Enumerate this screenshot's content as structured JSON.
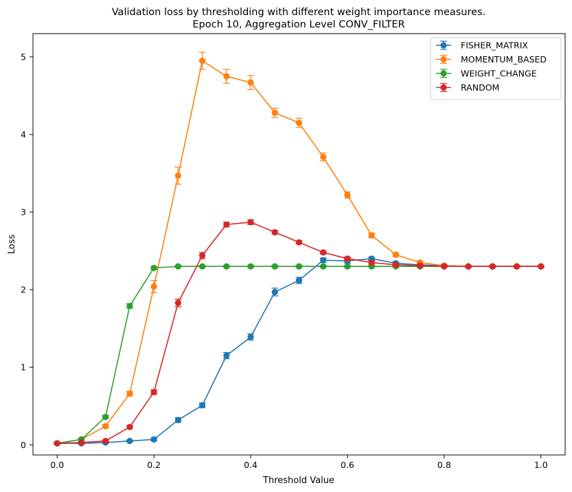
{
  "chart_data": {
    "type": "line",
    "title": "Validation loss by thresholding with different weight importance measures.",
    "subtitle": "Epoch 10, Aggregation Level CONV_FILTER",
    "xlabel": "Threshold Value",
    "ylabel": "Loss",
    "xlim": [
      -0.05,
      1.05
    ],
    "ylim": [
      -0.13,
      5.3
    ],
    "xticks": [
      0.0,
      0.2,
      0.4,
      0.6,
      0.8,
      1.0
    ],
    "xtick_labels": [
      "0.0",
      "0.2",
      "0.4",
      "0.6",
      "0.8",
      "1.0"
    ],
    "yticks": [
      0,
      1,
      2,
      3,
      4,
      5
    ],
    "ytick_labels": [
      "0",
      "1",
      "2",
      "3",
      "4",
      "5"
    ],
    "grid": false,
    "legend_position": "top-right",
    "x": [
      0.0,
      0.05,
      0.1,
      0.15,
      0.2,
      0.25,
      0.3,
      0.35,
      0.4,
      0.45,
      0.5,
      0.55,
      0.6,
      0.65,
      0.7,
      0.75,
      0.8,
      0.85,
      0.9,
      0.95,
      1.0
    ],
    "series": [
      {
        "name": "FISHER_MATRIX",
        "color": "#1f77b4",
        "values": [
          0.02,
          0.02,
          0.03,
          0.05,
          0.07,
          0.32,
          0.51,
          1.15,
          1.39,
          1.97,
          2.12,
          2.38,
          2.37,
          2.4,
          2.34,
          2.32,
          2.31,
          2.3,
          2.3,
          2.3,
          2.3
        ],
        "errors": [
          0.01,
          0.01,
          0.01,
          0.01,
          0.02,
          0.03,
          0.03,
          0.04,
          0.04,
          0.05,
          0.04,
          0.03,
          0.03,
          0.02,
          0.02,
          0.01,
          0.01,
          0.01,
          0.01,
          0.01,
          0.01
        ]
      },
      {
        "name": "MOMENTUM_BASED",
        "color": "#ff7f0e",
        "values": [
          0.02,
          0.07,
          0.24,
          0.66,
          2.04,
          3.47,
          4.95,
          4.75,
          4.67,
          4.28,
          4.15,
          3.71,
          3.22,
          2.7,
          2.45,
          2.35,
          2.31,
          2.3,
          2.3,
          2.3,
          2.3
        ],
        "errors": [
          0.01,
          0.01,
          0.02,
          0.03,
          0.08,
          0.11,
          0.11,
          0.09,
          0.09,
          0.06,
          0.06,
          0.05,
          0.04,
          0.03,
          0.02,
          0.02,
          0.01,
          0.01,
          0.01,
          0.01,
          0.01
        ]
      },
      {
        "name": "WEIGHT_CHANGE",
        "color": "#2ca02c",
        "values": [
          0.02,
          0.07,
          0.36,
          1.79,
          2.28,
          2.3,
          2.3,
          2.3,
          2.3,
          2.3,
          2.3,
          2.3,
          2.3,
          2.3,
          2.3,
          2.3,
          2.3,
          2.3,
          2.3,
          2.3,
          2.3
        ],
        "errors": [
          0.01,
          0.01,
          0.02,
          0.03,
          0.02,
          0.01,
          0.01,
          0.01,
          0.01,
          0.01,
          0.01,
          0.01,
          0.01,
          0.01,
          0.01,
          0.01,
          0.01,
          0.01,
          0.01,
          0.01,
          0.01
        ]
      },
      {
        "name": "RANDOM",
        "color": "#d62728",
        "values": [
          0.02,
          0.03,
          0.05,
          0.23,
          0.68,
          1.83,
          2.44,
          2.84,
          2.87,
          2.74,
          2.61,
          2.48,
          2.4,
          2.35,
          2.32,
          2.31,
          2.3,
          2.3,
          2.3,
          2.3,
          2.3
        ],
        "errors": [
          0.01,
          0.01,
          0.01,
          0.02,
          0.03,
          0.05,
          0.04,
          0.03,
          0.03,
          0.02,
          0.02,
          0.02,
          0.02,
          0.02,
          0.01,
          0.01,
          0.01,
          0.01,
          0.01,
          0.01,
          0.01
        ]
      }
    ]
  }
}
